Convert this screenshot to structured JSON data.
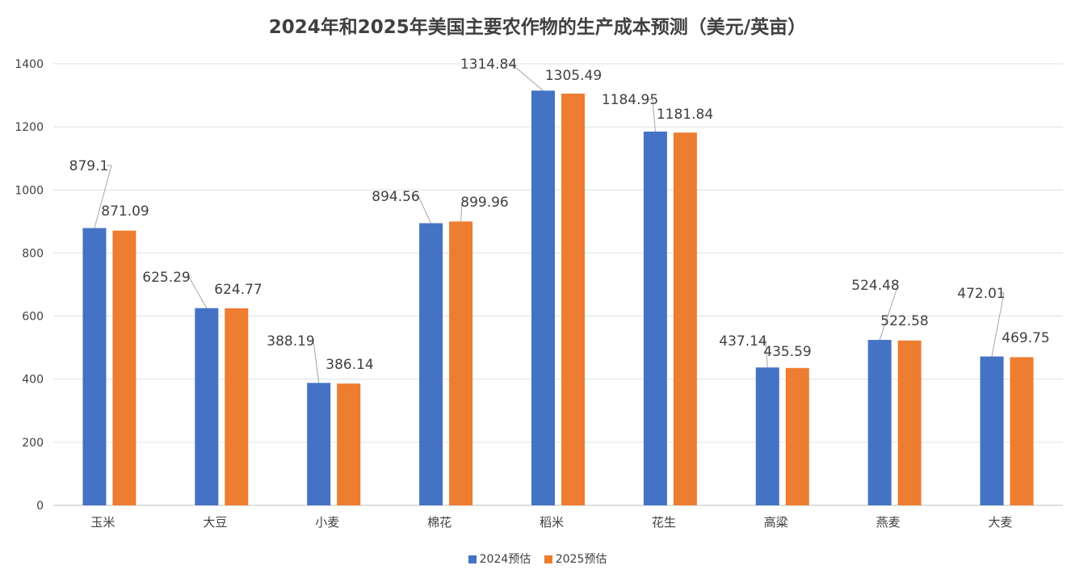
{
  "chart_data": {
    "type": "bar",
    "title": "2024年和2025年美国主要农作物的生产成本预测（美元/英亩）",
    "categories": [
      "玉米",
      "大豆",
      "小麦",
      "棉花",
      "稻米",
      "花生",
      "高粱",
      "燕麦",
      "大麦"
    ],
    "series": [
      {
        "name": "2024预估",
        "color": "#4472C4",
        "values": [
          879.1,
          625.29,
          388.19,
          894.56,
          1314.84,
          1184.95,
          437.14,
          524.48,
          472.01
        ]
      },
      {
        "name": "2025预估",
        "color": "#ED7D31",
        "values": [
          871.09,
          624.77,
          386.14,
          899.96,
          1305.49,
          1181.84,
          435.59,
          522.58,
          469.75
        ]
      }
    ],
    "ylim": [
      0,
      1400
    ],
    "yticks": [
      0,
      200,
      400,
      600,
      800,
      1000,
      1200,
      1400
    ],
    "grid": true,
    "legend": "bottom",
    "xlabel": "",
    "ylabel": ""
  }
}
